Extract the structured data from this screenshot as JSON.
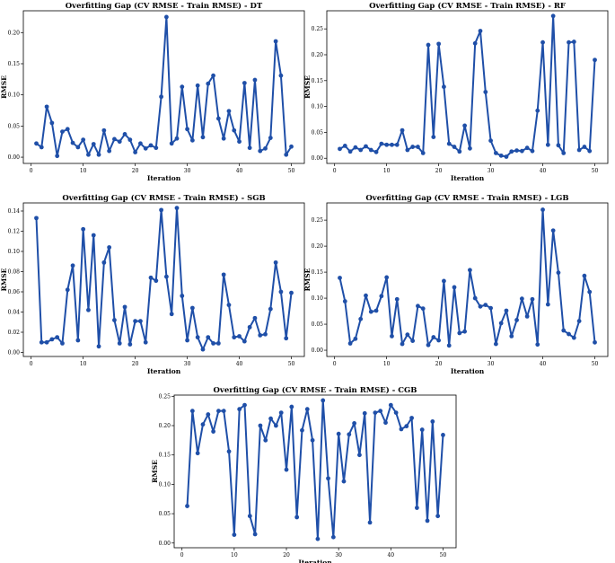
{
  "chart_data": [
    {
      "type": "line",
      "title": "Overfitting Gap (CV RMSE - Train RMSE) - DT",
      "xlabel": "Iteration",
      "ylabel": "RMSE",
      "xlim": [
        -1.5,
        52.5
      ],
      "ylim": [
        -0.01,
        0.235
      ],
      "xticks": [
        0,
        10,
        20,
        30,
        40,
        50
      ],
      "yticks": [
        0.0,
        0.05,
        0.1,
        0.15,
        0.2
      ],
      "ytick_labels": [
        "0.00",
        "0.05",
        "0.10",
        "0.15",
        "0.20"
      ],
      "color": "#1f4fa8",
      "grid": false,
      "x": [
        1,
        2,
        3,
        4,
        5,
        6,
        7,
        8,
        9,
        10,
        11,
        12,
        13,
        14,
        15,
        16,
        17,
        18,
        19,
        20,
        21,
        22,
        23,
        24,
        25,
        26,
        27,
        28,
        29,
        30,
        31,
        32,
        33,
        34,
        35,
        36,
        37,
        38,
        39,
        40,
        41,
        42,
        43,
        44,
        45,
        46,
        47,
        48,
        49,
        50
      ],
      "values": [
        0.022,
        0.016,
        0.081,
        0.055,
        0.002,
        0.041,
        0.045,
        0.023,
        0.016,
        0.028,
        0.004,
        0.021,
        0.004,
        0.043,
        0.01,
        0.029,
        0.025,
        0.037,
        0.028,
        0.008,
        0.022,
        0.014,
        0.019,
        0.015,
        0.097,
        0.225,
        0.022,
        0.03,
        0.113,
        0.045,
        0.027,
        0.115,
        0.032,
        0.118,
        0.131,
        0.062,
        0.03,
        0.074,
        0.043,
        0.025,
        0.119,
        0.015,
        0.124,
        0.01,
        0.014,
        0.031,
        0.186,
        0.131,
        0.004,
        0.017
      ]
    },
    {
      "type": "line",
      "title": "Overfitting Gap (CV RMSE - Train RMSE) - RF",
      "xlabel": "Iteration",
      "ylabel": "RMSE",
      "xlim": [
        -1.5,
        52.5
      ],
      "ylim": [
        -0.01,
        0.285
      ],
      "xticks": [
        0,
        10,
        20,
        30,
        40,
        50
      ],
      "yticks": [
        0.0,
        0.05,
        0.1,
        0.15,
        0.2,
        0.25
      ],
      "ytick_labels": [
        "0.00",
        "0.05",
        "0.10",
        "0.15",
        "0.20",
        "0.25"
      ],
      "color": "#1f4fa8",
      "grid": false,
      "x": [
        1,
        2,
        3,
        4,
        5,
        6,
        7,
        8,
        9,
        10,
        11,
        12,
        13,
        14,
        15,
        16,
        17,
        18,
        19,
        20,
        21,
        22,
        23,
        24,
        25,
        26,
        27,
        28,
        29,
        30,
        31,
        32,
        33,
        34,
        35,
        36,
        37,
        38,
        39,
        40,
        41,
        42,
        43,
        44,
        45,
        46,
        47,
        48,
        49,
        50
      ],
      "values": [
        0.018,
        0.024,
        0.013,
        0.021,
        0.016,
        0.023,
        0.016,
        0.012,
        0.028,
        0.026,
        0.026,
        0.026,
        0.054,
        0.016,
        0.022,
        0.022,
        0.01,
        0.219,
        0.041,
        0.221,
        0.138,
        0.028,
        0.022,
        0.013,
        0.063,
        0.019,
        0.222,
        0.246,
        0.128,
        0.034,
        0.01,
        0.005,
        0.003,
        0.013,
        0.015,
        0.014,
        0.02,
        0.014,
        0.092,
        0.224,
        0.026,
        0.275,
        0.025,
        0.01,
        0.224,
        0.225,
        0.016,
        0.022,
        0.014,
        0.19
      ]
    },
    {
      "type": "line",
      "title": "Overfitting Gap (CV RMSE - Train RMSE) - SGB",
      "xlabel": "Iteration",
      "ylabel": "RMSE",
      "xlim": [
        -1.5,
        52.5
      ],
      "ylim": [
        -0.004,
        0.148
      ],
      "xticks": [
        0,
        10,
        20,
        30,
        40,
        50
      ],
      "yticks": [
        0.0,
        0.02,
        0.04,
        0.06,
        0.08,
        0.1,
        0.12,
        0.14
      ],
      "ytick_labels": [
        "0.00",
        "0.02",
        "0.04",
        "0.06",
        "0.08",
        "0.10",
        "0.12",
        "0.14"
      ],
      "color": "#1f4fa8",
      "grid": false,
      "x": [
        1,
        2,
        3,
        4,
        5,
        6,
        7,
        8,
        9,
        10,
        11,
        12,
        13,
        14,
        15,
        16,
        17,
        18,
        19,
        20,
        21,
        22,
        23,
        24,
        25,
        26,
        27,
        28,
        29,
        30,
        31,
        32,
        33,
        34,
        35,
        36,
        37,
        38,
        39,
        40,
        41,
        42,
        43,
        44,
        45,
        46,
        47,
        48,
        49,
        50
      ],
      "values": [
        0.133,
        0.01,
        0.01,
        0.013,
        0.015,
        0.009,
        0.062,
        0.086,
        0.012,
        0.122,
        0.042,
        0.116,
        0.006,
        0.089,
        0.104,
        0.032,
        0.009,
        0.045,
        0.008,
        0.031,
        0.031,
        0.01,
        0.074,
        0.071,
        0.141,
        0.075,
        0.038,
        0.143,
        0.056,
        0.012,
        0.044,
        0.015,
        0.003,
        0.015,
        0.009,
        0.009,
        0.077,
        0.047,
        0.015,
        0.016,
        0.011,
        0.025,
        0.034,
        0.017,
        0.018,
        0.043,
        0.089,
        0.06,
        0.014,
        0.059
      ]
    },
    {
      "type": "line",
      "title": "Overfitting Gap (CV RMSE - Train RMSE) - LGB",
      "xlabel": "Iteration",
      "ylabel": "RMSE",
      "xlim": [
        -1.5,
        52.5
      ],
      "ylim": [
        -0.012,
        0.283
      ],
      "xticks": [
        0,
        10,
        20,
        30,
        40,
        50
      ],
      "yticks": [
        0.0,
        0.05,
        0.1,
        0.15,
        0.2,
        0.25
      ],
      "ytick_labels": [
        "0.00",
        "0.05",
        "0.10",
        "0.15",
        "0.20",
        "0.25"
      ],
      "color": "#1f4fa8",
      "grid": false,
      "x": [
        1,
        2,
        3,
        4,
        5,
        6,
        7,
        8,
        9,
        10,
        11,
        12,
        13,
        14,
        15,
        16,
        17,
        18,
        19,
        20,
        21,
        22,
        23,
        24,
        25,
        26,
        27,
        28,
        29,
        30,
        31,
        32,
        33,
        34,
        35,
        36,
        37,
        38,
        39,
        40,
        41,
        42,
        43,
        44,
        45,
        46,
        47,
        48,
        49,
        50
      ],
      "values": [
        0.139,
        0.094,
        0.013,
        0.022,
        0.06,
        0.105,
        0.074,
        0.076,
        0.104,
        0.14,
        0.027,
        0.098,
        0.012,
        0.03,
        0.018,
        0.085,
        0.08,
        0.01,
        0.025,
        0.019,
        0.133,
        0.009,
        0.121,
        0.033,
        0.036,
        0.154,
        0.1,
        0.084,
        0.087,
        0.081,
        0.012,
        0.052,
        0.076,
        0.027,
        0.058,
        0.099,
        0.065,
        0.098,
        0.011,
        0.27,
        0.088,
        0.23,
        0.149,
        0.038,
        0.031,
        0.024,
        0.056,
        0.143,
        0.112,
        0.015
      ]
    },
    {
      "type": "line",
      "title": "Overfitting Gap (CV RMSE - Train RMSE) - CGB",
      "xlabel": "Iteration",
      "ylabel": "RMSE",
      "xlim": [
        -1.5,
        52.5
      ],
      "ylim": [
        -0.008,
        0.252
      ],
      "xticks": [
        0,
        10,
        20,
        30,
        40,
        50
      ],
      "yticks": [
        0.0,
        0.05,
        0.1,
        0.15,
        0.2,
        0.25
      ],
      "ytick_labels": [
        "0.00",
        "0.05",
        "0.10",
        "0.15",
        "0.20",
        "0.25"
      ],
      "color": "#1f4fa8",
      "grid": false,
      "x": [
        1,
        2,
        3,
        4,
        5,
        6,
        7,
        8,
        9,
        10,
        11,
        12,
        13,
        14,
        15,
        16,
        17,
        18,
        19,
        20,
        21,
        22,
        23,
        24,
        25,
        26,
        27,
        28,
        29,
        30,
        31,
        32,
        33,
        34,
        35,
        36,
        37,
        38,
        39,
        40,
        41,
        42,
        43,
        44,
        45,
        46,
        47,
        48,
        49,
        50
      ],
      "values": [
        0.063,
        0.225,
        0.153,
        0.202,
        0.219,
        0.19,
        0.225,
        0.225,
        0.156,
        0.014,
        0.228,
        0.235,
        0.046,
        0.015,
        0.2,
        0.175,
        0.212,
        0.2,
        0.222,
        0.125,
        0.232,
        0.044,
        0.192,
        0.228,
        0.175,
        0.007,
        0.243,
        0.11,
        0.01,
        0.186,
        0.105,
        0.185,
        0.204,
        0.15,
        0.221,
        0.035,
        0.222,
        0.225,
        0.205,
        0.235,
        0.222,
        0.194,
        0.199,
        0.213,
        0.06,
        0.193,
        0.038,
        0.207,
        0.046,
        0.184
      ]
    }
  ]
}
